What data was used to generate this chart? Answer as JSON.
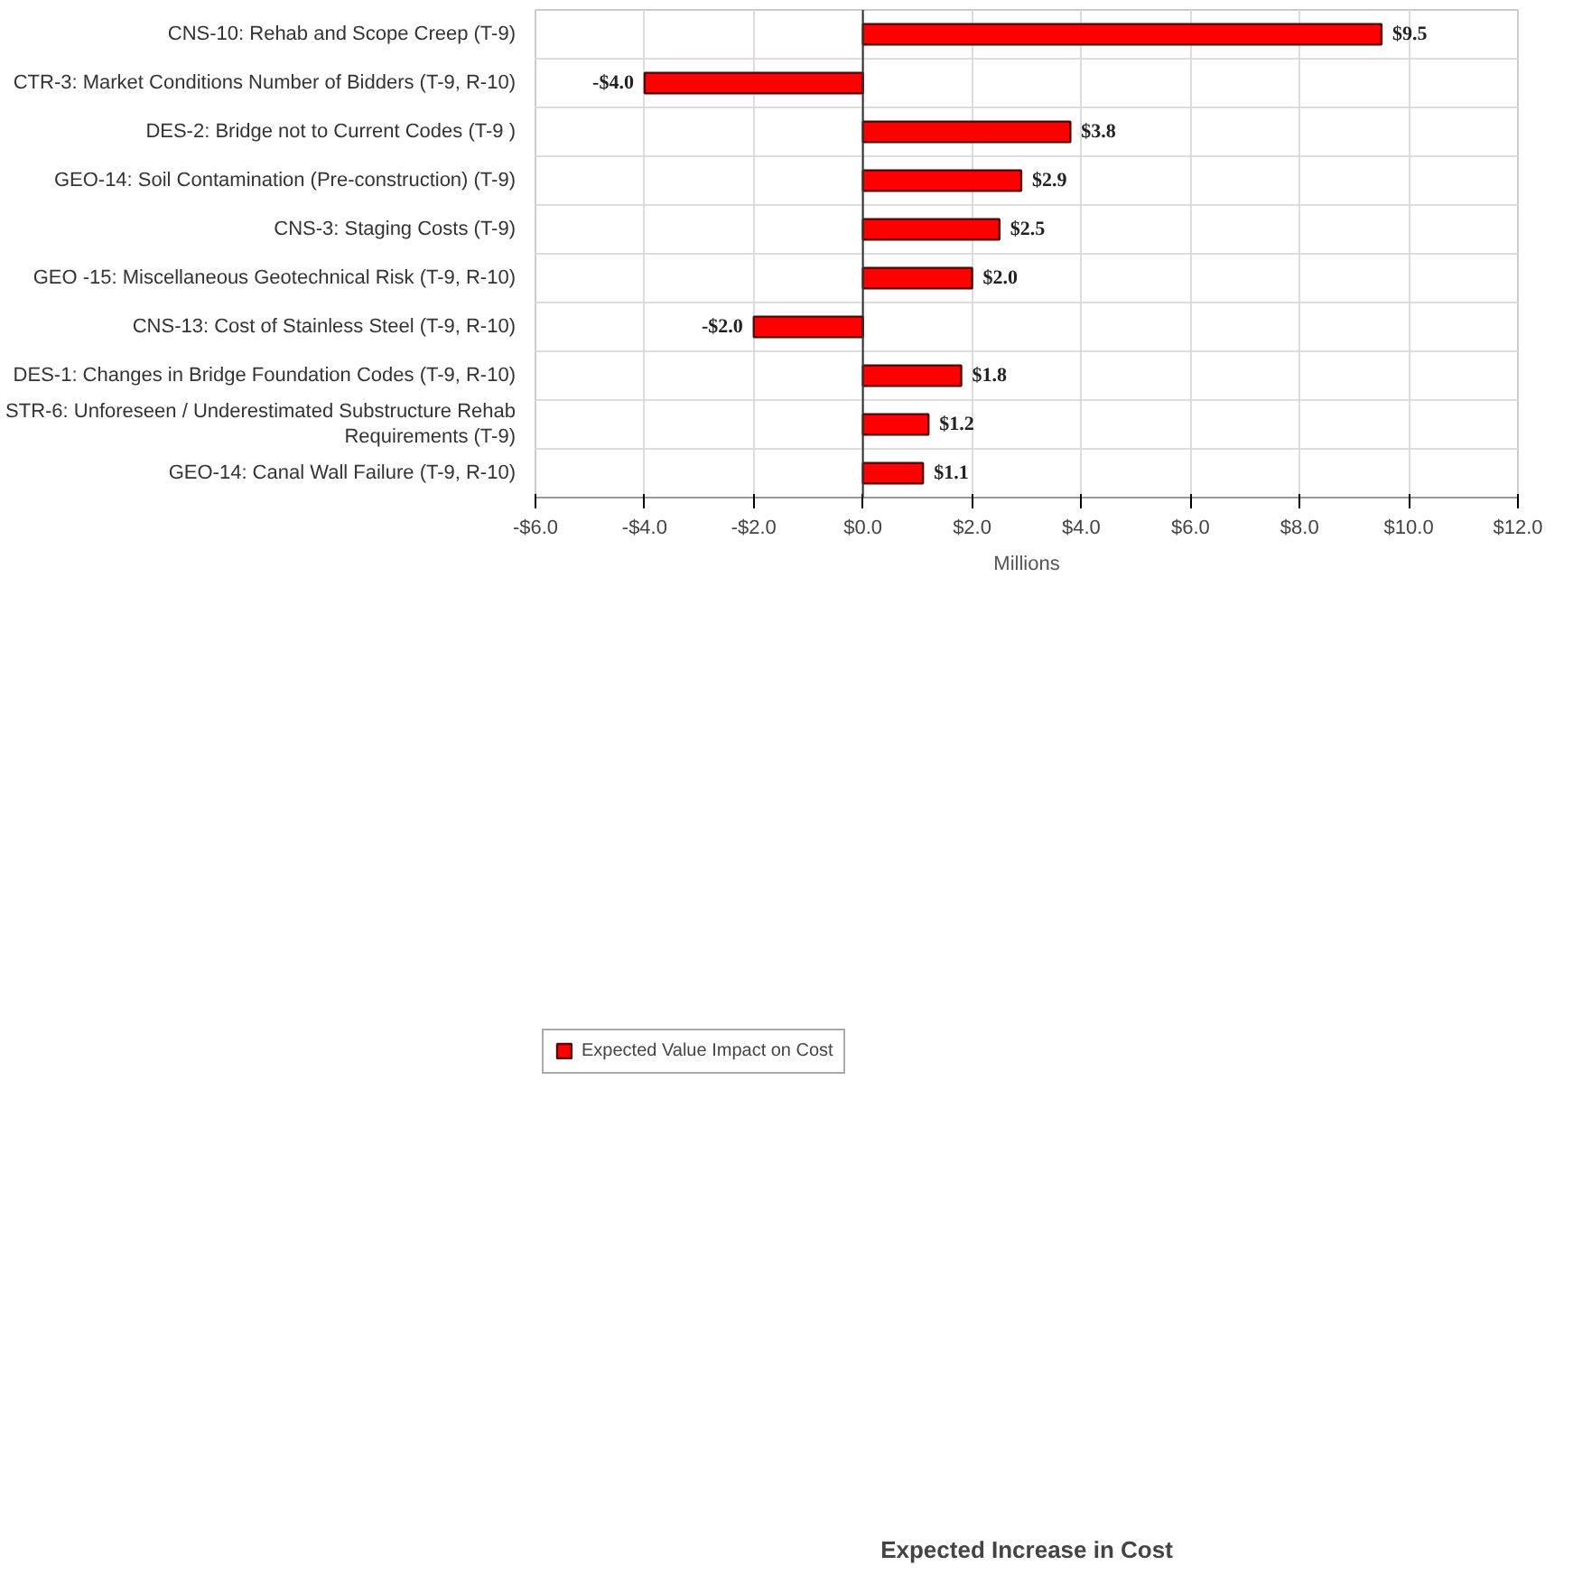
{
  "chart_data": {
    "type": "bar",
    "orientation": "horizontal",
    "title": "Expected Increase in Cost",
    "xlabel": "Millions",
    "categories": [
      "CNS-10: Rehab and Scope Creep (T-9)",
      "CTR-3: Market Conditions Number of Bidders (T-9, R-10)",
      "DES-2: Bridge not to Current Codes (T-9 )",
      "GEO-14: Soil Contamination (Pre-construction) (T-9)",
      "CNS-3: Staging Costs (T-9)",
      "GEO -15: Miscellaneous Geotechnical Risk (T-9, R-10)",
      "CNS-13: Cost of Stainless Steel (T-9, R-10)",
      "DES-1: Changes in Bridge Foundation Codes (T-9, R-10)",
      "STR-6: Unforeseen / Underestimated Substructure Rehab Requirements (T-9)",
      "GEO-14: Canal Wall Failure (T-9, R-10)"
    ],
    "series": [
      {
        "name": "Expected Value Impact on Cost",
        "color": "#ff0000",
        "values": [
          9.5,
          -4.0,
          3.8,
          2.9,
          2.5,
          2.0,
          -2.0,
          1.8,
          1.2,
          1.1
        ],
        "value_labels": [
          "$9.5",
          "-$4.0",
          "$3.8",
          "$2.9",
          "$2.5",
          "$2.0",
          "-$2.0",
          "$1.8",
          "$1.2",
          "$1.1"
        ]
      }
    ],
    "xlim": [
      -6,
      12
    ],
    "xticks": [
      {
        "value": -6,
        "label": "-$6.0"
      },
      {
        "value": -4,
        "label": "-$4.0"
      },
      {
        "value": -2,
        "label": "-$2.0"
      },
      {
        "value": 0,
        "label": "$0.0"
      },
      {
        "value": 2,
        "label": "$2.0"
      },
      {
        "value": 4,
        "label": "$4.0"
      },
      {
        "value": 6,
        "label": "$6.0"
      },
      {
        "value": 8,
        "label": "$8.0"
      },
      {
        "value": 10,
        "label": "$10.0"
      },
      {
        "value": 12,
        "label": "$12.0"
      }
    ],
    "grid": true,
    "legend": "bottom left"
  }
}
